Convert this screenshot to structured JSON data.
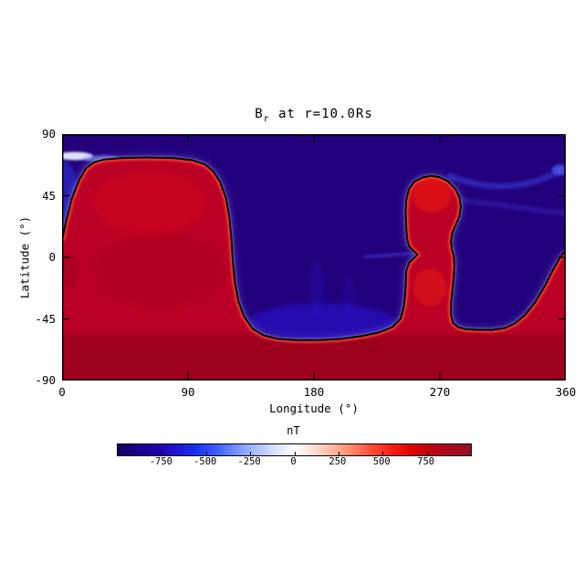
{
  "figure": {
    "background": "#ffffff",
    "title": {
      "base": "B",
      "sub": "r",
      "rest": " at r=10.0Rs"
    }
  },
  "axes": {
    "x": {
      "label": "Longitude (°)",
      "min": 0,
      "max": 360,
      "ticks": [
        {
          "value": 0,
          "label": "0"
        },
        {
          "value": 90,
          "label": "90"
        },
        {
          "value": 180,
          "label": "180"
        },
        {
          "value": 270,
          "label": "270"
        },
        {
          "value": 360,
          "label": "360"
        }
      ]
    },
    "y": {
      "label": "Latitude (°)",
      "min": -90,
      "max": 90,
      "ticks": [
        {
          "value": 90,
          "label": "90"
        },
        {
          "value": 45,
          "label": "45"
        },
        {
          "value": 0,
          "label": "0"
        },
        {
          "value": -45,
          "label": "-45"
        },
        {
          "value": -90,
          "label": "-90"
        }
      ]
    }
  },
  "colorbar": {
    "label": "nT",
    "min": -1000,
    "max": 1000,
    "ticks": [
      {
        "value": -750,
        "label": "-750"
      },
      {
        "value": -500,
        "label": "-500"
      },
      {
        "value": -250,
        "label": "-250"
      },
      {
        "value": 0,
        "label": "0"
      },
      {
        "value": 250,
        "label": "250"
      },
      {
        "value": 500,
        "label": "500"
      },
      {
        "value": 750,
        "label": "750"
      }
    ],
    "gradient": [
      "#120060",
      "#1B0086",
      "#2300A8",
      "#1E14D2",
      "#1633F2",
      "#3B5BFF",
      "#7490FF",
      "#A9BCFF",
      "#D8E2FF",
      "#FFFFFF",
      "#FFDFD2",
      "#FFB59C",
      "#FF8264",
      "#FF4A34",
      "#F51E12",
      "#DE0404",
      "#C00014",
      "#A60A1E",
      "#960E20"
    ]
  },
  "theme": {
    "page-bg": "#ffffff",
    "text": "#000000",
    "frame": "#000000",
    "contour": "#000000",
    "pos-fill": "#BB0126",
    "pos-deep": "#96001B",
    "pos-bright": "#FF4A30",
    "neg-fill": "#22007C",
    "neg-bright": "#2B17DA",
    "glow": "#FFFFFF",
    "glow2": "#8FA3FF"
  },
  "chart_data": {
    "type": "heatmap",
    "title": "Br at r=10.0Rs",
    "xlabel": "Longitude (°)",
    "ylabel": "Latitude (°)",
    "xlim": [
      0,
      360
    ],
    "ylim": [
      -90,
      90
    ],
    "x_ticks": [
      0,
      90,
      180,
      270,
      360
    ],
    "y_ticks": [
      90,
      45,
      0,
      -45,
      -90
    ],
    "grid": false,
    "colorbar": {
      "label": "nT",
      "ticks": [
        -750,
        -500,
        -250,
        0,
        250,
        500,
        750
      ],
      "approx_range": [
        -1000,
        1000
      ],
      "orientation": "horizontal",
      "position": "bottom"
    },
    "description": "Radial solar magnetic field polarity map at r=10 solar radii. Red region = positive polarity (roughly +500 to +900 nT, darkest crimson near the south pole band), dark indigo region = negative polarity (roughly -600 to -900 nT). A black neutral line (Br=0) with a white/light-blue transition band separates the polarities. Positive regions: a large lobe spanning lon 0-122 reaching lat ~73, the entire south band below lat ~-55, a column near lon 246-285 rising to lat ~60 with a waist near the equator, and a wedge at lon 330-360 below lat ~5.",
    "neutral_line_lonlat": [
      [
        0,
        12
      ],
      [
        3,
        27
      ],
      [
        7,
        43
      ],
      [
        12,
        56
      ],
      [
        17,
        65
      ],
      [
        23,
        69.5
      ],
      [
        30,
        71.5
      ],
      [
        42,
        72.5
      ],
      [
        60,
        73
      ],
      [
        80,
        72.5
      ],
      [
        93,
        71
      ],
      [
        102,
        68
      ],
      [
        108,
        63
      ],
      [
        113,
        55
      ],
      [
        117,
        44
      ],
      [
        119.5,
        30
      ],
      [
        121,
        14
      ],
      [
        122,
        -2
      ],
      [
        123.5,
        -18
      ],
      [
        126,
        -32
      ],
      [
        130,
        -43
      ],
      [
        136,
        -52
      ],
      [
        144,
        -57
      ],
      [
        154,
        -59.5
      ],
      [
        168,
        -60.5
      ],
      [
        184,
        -60.5
      ],
      [
        200,
        -59.5
      ],
      [
        214,
        -57.5
      ],
      [
        226,
        -55
      ],
      [
        236,
        -51
      ],
      [
        242,
        -45
      ],
      [
        244.5,
        -35
      ],
      [
        245.5,
        -22
      ],
      [
        246,
        -10
      ],
      [
        248,
        -4
      ],
      [
        252,
        0
      ],
      [
        254,
        2
      ],
      [
        251,
        5
      ],
      [
        248,
        8
      ],
      [
        246.5,
        14
      ],
      [
        246,
        22
      ],
      [
        245.5,
        32
      ],
      [
        246,
        42
      ],
      [
        248,
        50
      ],
      [
        252,
        55.5
      ],
      [
        258,
        58.5
      ],
      [
        264,
        59.5
      ],
      [
        270,
        58.5
      ],
      [
        276,
        55.5
      ],
      [
        281,
        50
      ],
      [
        284,
        44
      ],
      [
        285,
        37
      ],
      [
        284,
        30
      ],
      [
        281.5,
        24
      ],
      [
        279,
        18
      ],
      [
        278,
        12
      ],
      [
        278.5,
        6
      ],
      [
        280,
        1
      ],
      [
        280.5,
        -6
      ],
      [
        280,
        -14
      ],
      [
        279,
        -24
      ],
      [
        278,
        -34
      ],
      [
        278,
        -42
      ],
      [
        279.5,
        -48
      ],
      [
        283,
        -51
      ],
      [
        289,
        -52.5
      ],
      [
        298,
        -53
      ],
      [
        308,
        -53
      ],
      [
        317,
        -51.5
      ],
      [
        324,
        -48
      ],
      [
        331,
        -42
      ],
      [
        338,
        -33
      ],
      [
        345,
        -21
      ],
      [
        351,
        -9
      ],
      [
        356,
        0
      ],
      [
        360,
        5
      ]
    ],
    "positive_region_closure": [
      [
        360,
        -90
      ],
      [
        0,
        -90
      ]
    ]
  }
}
